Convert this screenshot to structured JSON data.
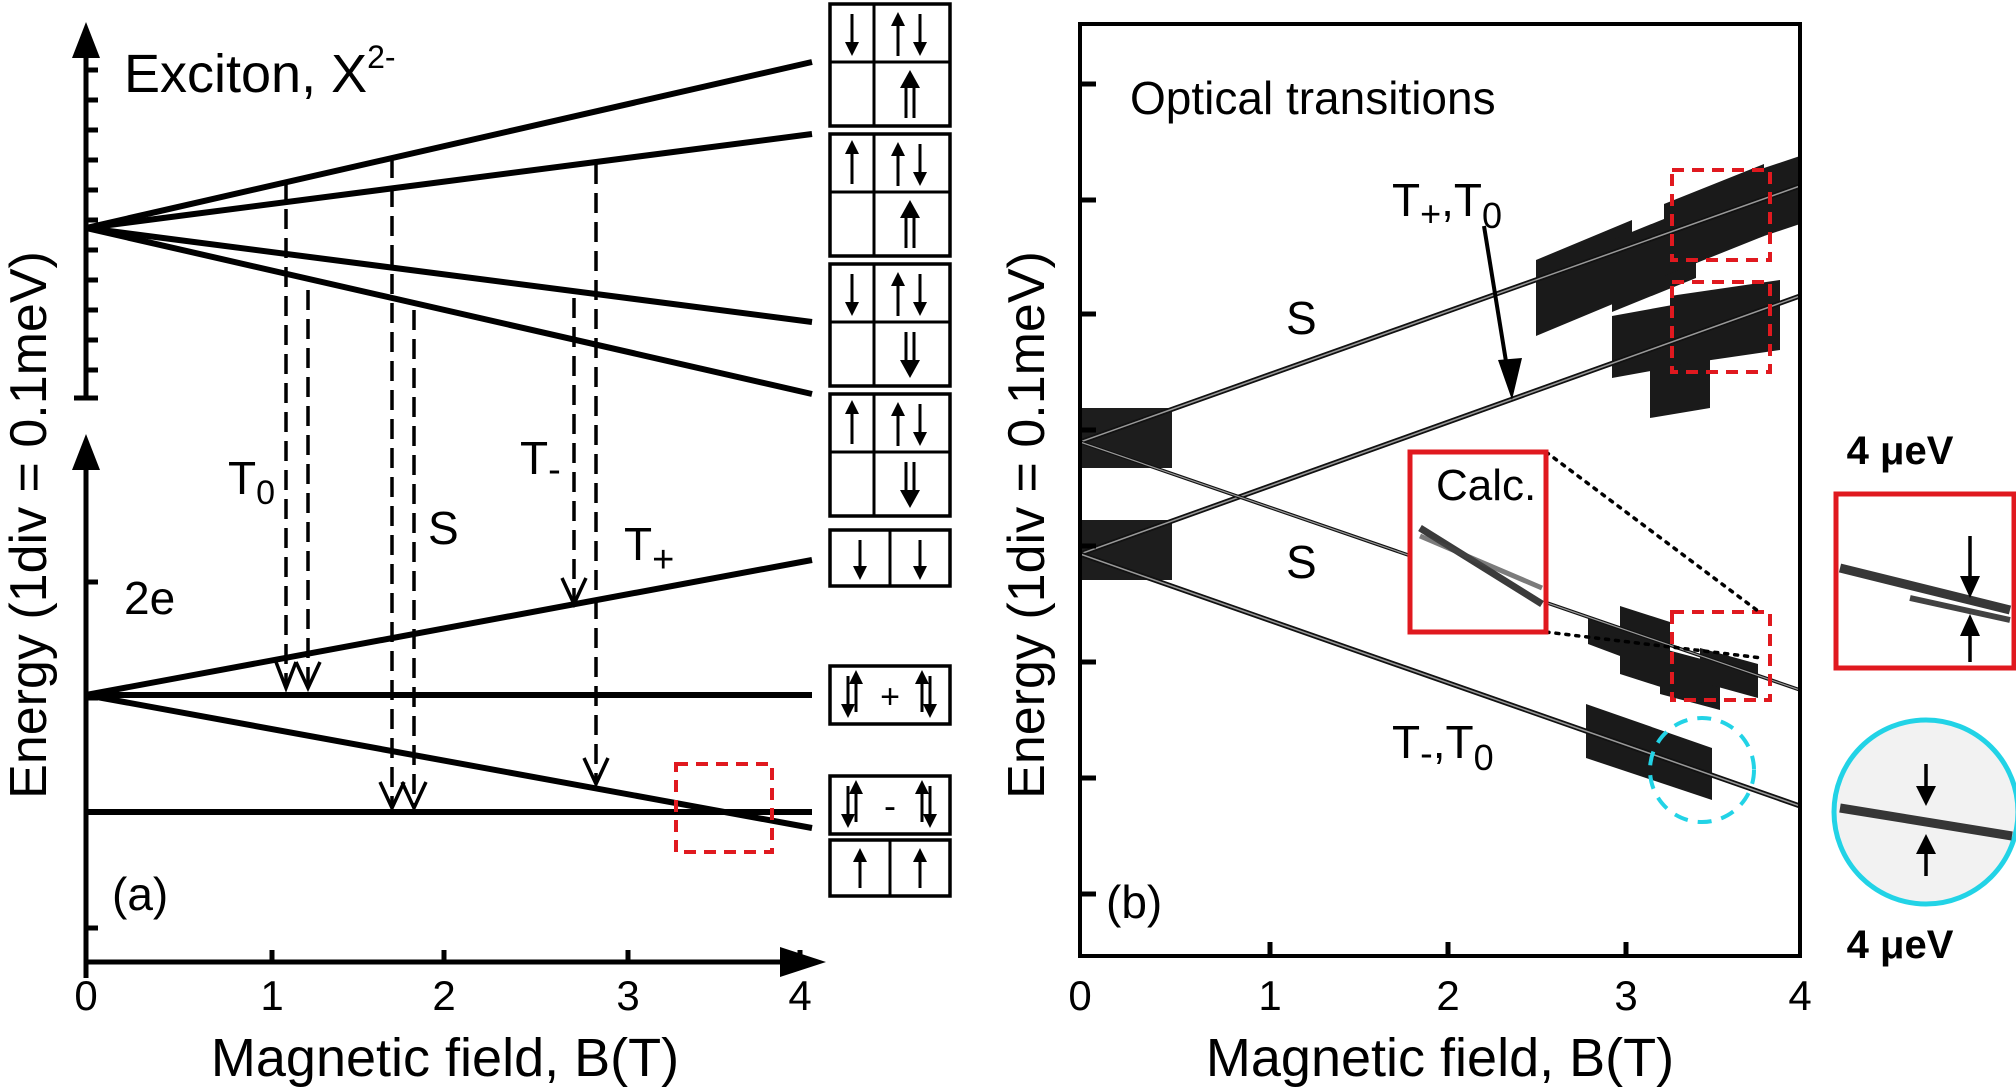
{
  "panel_a": {
    "label": "(a)",
    "exciton_label_main": "Exciton, X",
    "exciton_label_sup": "2-",
    "ground_label": "2e",
    "ylabel": "Energy (1div = 0.1meV)",
    "xlabel": "Magnetic field, B(T)",
    "xticks": [
      "0",
      "1",
      "2",
      "3",
      "4"
    ],
    "transitions": [
      {
        "label": "T",
        "sub": "0"
      },
      {
        "label": "S",
        "sub": ""
      },
      {
        "label": "T",
        "sub": "-"
      },
      {
        "label": "T",
        "sub": "+"
      }
    ],
    "spin_config_mid_1": "+",
    "spin_config_mid_2": "-"
  },
  "panel_b": {
    "label": "(b)",
    "title": "Optical transitions",
    "ylabel": "Energy (1div = 0.1meV)",
    "xlabel": "Magnetic field, B(T)",
    "xticks": [
      "0",
      "1",
      "2",
      "3",
      "4"
    ],
    "labels": {
      "upper_T": "T",
      "upper_T_sub1": "+",
      "upper_T_sep": ",T",
      "upper_T_sub2": "0",
      "upper_S": "S",
      "lower_S": "S",
      "lower_T": "T",
      "lower_T_sub1": "-",
      "lower_T_sep": ",T",
      "lower_T_sub2": "0",
      "calc": "Calc."
    }
  },
  "insets": {
    "top_label": "4 μeV",
    "bottom_label": "4 μeV"
  },
  "colors": {
    "red": "#e0191f",
    "cyan": "#22d3e6"
  }
}
